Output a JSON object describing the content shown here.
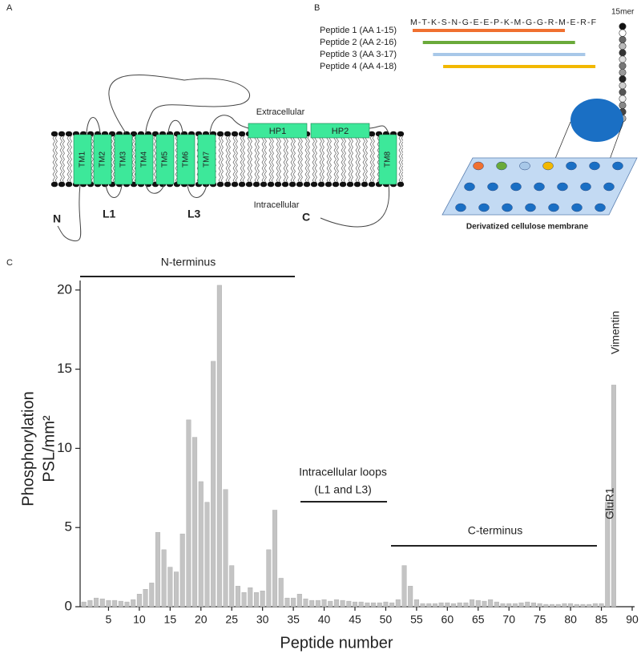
{
  "panel_a": {
    "label": "A",
    "extracellular": "Extracellular",
    "intracellular": "Intracellular",
    "tm": [
      "TM1",
      "TM2",
      "TM3",
      "TM4",
      "TM5",
      "TM6",
      "TM7",
      "TM8"
    ],
    "hp": [
      "HP1",
      "HP2"
    ],
    "n_terminus": "N",
    "c_terminus": "C",
    "loops": [
      "L1",
      "L3"
    ]
  },
  "panel_b": {
    "label": "B",
    "sequence": "M-T-K-S-N-G-E-E-P-K-M-G-G-R-M-E-R-F",
    "peptides": [
      {
        "name": "Peptide 1 (AA 1-15)",
        "color": "#f07030"
      },
      {
        "name": "Peptide 2 (AA 2-16)",
        "color": "#6aaa3a"
      },
      {
        "name": "Peptide 3 (AA 3-17)",
        "color": "#a8c8e8"
      },
      {
        "name": "Peptide 4 (AA 4-18)",
        "color": "#f2b800"
      }
    ],
    "length_label": "15mer",
    "membrane_label": "Derivatized cellulose membrane"
  },
  "chart_data": {
    "type": "bar",
    "panel_label": "C",
    "y_label": [
      "Phosphorylation",
      "PSL/mm²"
    ],
    "x_label": "Peptide number",
    "color": "#c4c4c4",
    "x": [
      1,
      2,
      3,
      4,
      5,
      6,
      7,
      8,
      9,
      10,
      11,
      12,
      13,
      14,
      15,
      16,
      17,
      18,
      19,
      20,
      21,
      22,
      23,
      24,
      25,
      26,
      27,
      28,
      29,
      30,
      31,
      32,
      33,
      34,
      35,
      36,
      37,
      38,
      39,
      40,
      41,
      42,
      43,
      44,
      45,
      46,
      47,
      48,
      49,
      50,
      51,
      52,
      53,
      54,
      55,
      56,
      57,
      58,
      59,
      60,
      61,
      62,
      63,
      64,
      65,
      66,
      67,
      68,
      69,
      70,
      71,
      72,
      73,
      74,
      75,
      76,
      77,
      78,
      79,
      80,
      81,
      82,
      83,
      84,
      85,
      86,
      87
    ],
    "values": [
      0.3,
      0.4,
      0.55,
      0.5,
      0.4,
      0.4,
      0.35,
      0.3,
      0.45,
      0.8,
      1.1,
      1.5,
      4.7,
      3.6,
      2.5,
      2.2,
      4.6,
      11.8,
      10.7,
      7.9,
      6.6,
      15.5,
      20.3,
      7.4,
      2.6,
      1.3,
      0.9,
      1.2,
      0.9,
      1.0,
      3.6,
      6.1,
      1.8,
      0.55,
      0.55,
      0.8,
      0.5,
      0.4,
      0.4,
      0.45,
      0.35,
      0.45,
      0.4,
      0.35,
      0.3,
      0.3,
      0.25,
      0.25,
      0.25,
      0.3,
      0.25,
      0.45,
      2.6,
      1.3,
      0.45,
      0.2,
      0.2,
      0.2,
      0.25,
      0.25,
      0.2,
      0.25,
      0.25,
      0.45,
      0.4,
      0.35,
      0.45,
      0.3,
      0.2,
      0.2,
      0.2,
      0.25,
      0.3,
      0.25,
      0.2,
      0.15,
      0.15,
      0.15,
      0.2,
      0.2,
      0.15,
      0.15,
      0.15,
      0.2,
      0.2,
      6.6,
      14.0
    ],
    "xlim": [
      0,
      90
    ],
    "xticks": [
      5,
      10,
      15,
      20,
      25,
      30,
      35,
      40,
      45,
      50,
      55,
      60,
      65,
      70,
      75,
      80,
      85,
      90
    ],
    "ylim": [
      0,
      20.6
    ],
    "yticks": [
      0,
      5,
      10,
      15,
      20
    ],
    "annotations": [
      "N-terminus",
      "Intracellular loops",
      "(L1 and L3)",
      "C-terminus",
      "GluR1",
      "Vimentin"
    ]
  }
}
